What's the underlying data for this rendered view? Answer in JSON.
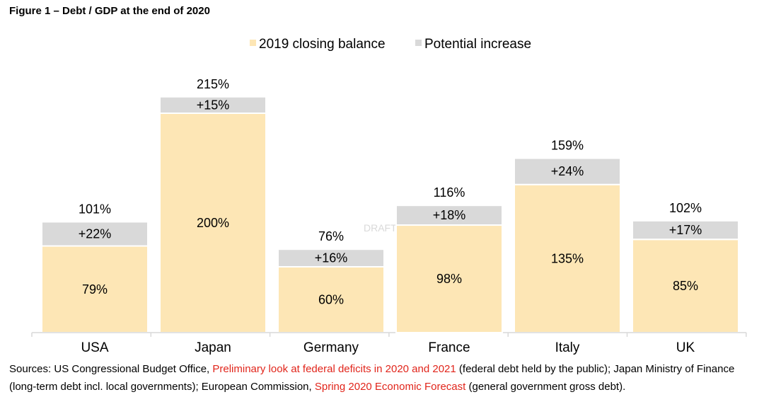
{
  "figure": {
    "title": "Figure 1 – Debt / GDP at the end of 2020",
    "watermark": "DRAFT"
  },
  "chart_data": {
    "type": "bar",
    "stacked": true,
    "categories": [
      "USA",
      "Japan",
      "Germany",
      "France",
      "Italy",
      "UK"
    ],
    "series": [
      {
        "name": "2019 closing balance",
        "values": [
          79,
          200,
          60,
          98,
          135,
          85
        ],
        "labels": [
          "79%",
          "200%",
          "60%",
          "98%",
          "135%",
          "85%"
        ],
        "color": "#fde6b5"
      },
      {
        "name": "Potential increase",
        "values": [
          22,
          15,
          16,
          18,
          24,
          17
        ],
        "labels": [
          "+22%",
          "+15%",
          "+16%",
          "+18%",
          "+24%",
          "+17%"
        ],
        "color": "#d9d9d9"
      }
    ],
    "totals": [
      "101%",
      "215%",
      "76%",
      "116%",
      "159%",
      "102%"
    ],
    "legend_position": "top-center",
    "grid": false,
    "y_axis_visible": false
  },
  "sources": {
    "prefix": "Sources: US Congressional Budget Office, ",
    "link1": "Preliminary look at federal deficits in 2020 and 2021",
    "middle": " (federal debt held by the public); Japan Ministry of Finance (long-term debt incl. local governments); European Commission, ",
    "link2": "Spring 2020 Economic Forecast",
    "suffix": " (general government gross debt)."
  }
}
